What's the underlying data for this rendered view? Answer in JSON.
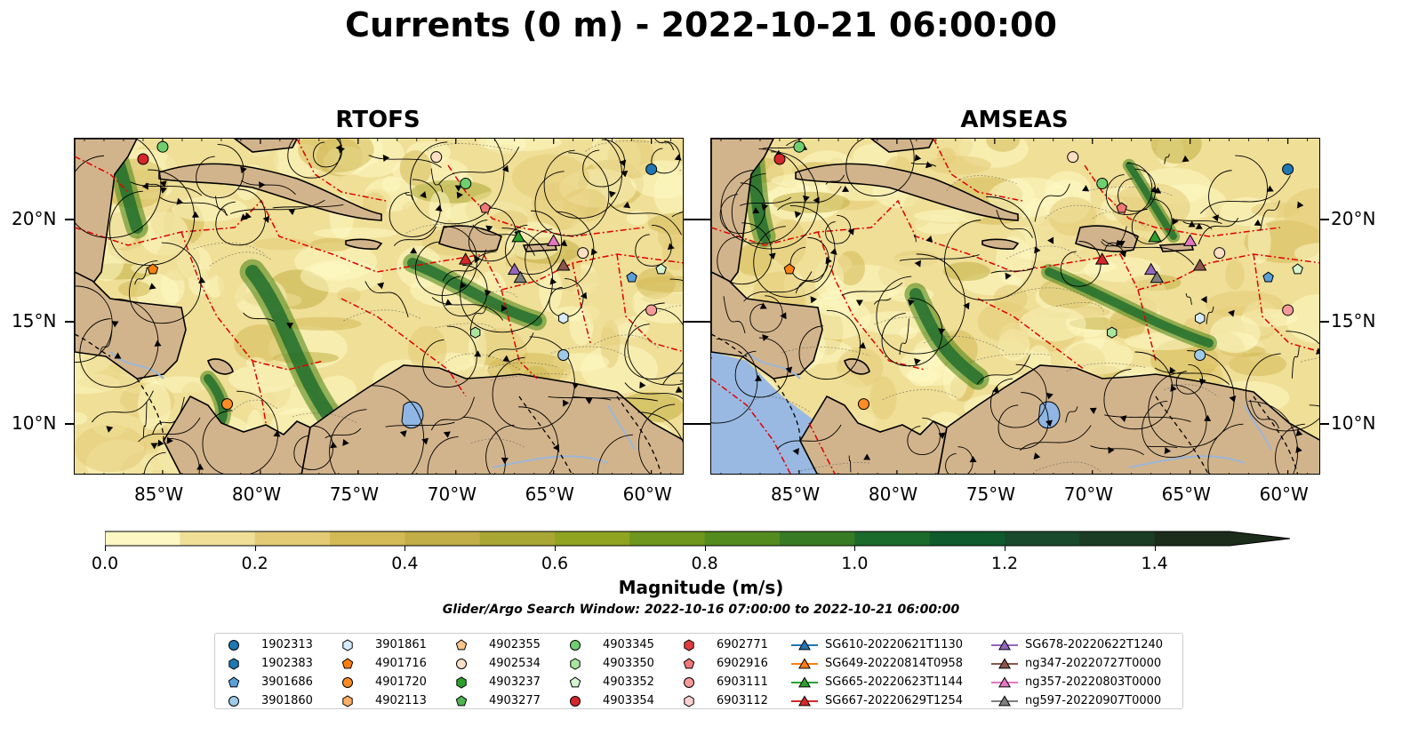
{
  "title": "Currents (0 m) - 2022-10-21 06:00:00",
  "panels": [
    {
      "title": "RTOFS"
    },
    {
      "title": "AMSEAS"
    }
  ],
  "axes": {
    "x_ticks": [
      "85°W",
      "80°W",
      "75°W",
      "70°W",
      "65°W",
      "60°W"
    ],
    "y_ticks": [
      "20°N",
      "15°N",
      "10°N"
    ],
    "lon_range": [
      -89.5,
      -58.3
    ],
    "lat_range": [
      7.5,
      24.0
    ]
  },
  "colorbar": {
    "label": "Magnitude (m/s)",
    "ticks": [
      "0.0",
      "0.2",
      "0.4",
      "0.6",
      "0.8",
      "1.0",
      "1.2",
      "1.4"
    ],
    "range": [
      0.0,
      1.5
    ],
    "extend": "max",
    "colors": [
      "#fdf7c3",
      "#efdf97",
      "#e3cb76",
      "#d4ba57",
      "#c2ae46",
      "#a9a734",
      "#90a422",
      "#6f961d",
      "#548b1e",
      "#377c24",
      "#1b6b2c",
      "#0f5b2d",
      "#184a2b",
      "#1b3d25",
      "#1c2d1b"
    ]
  },
  "search_window": "Glider/Argo Search Window: 2022-10-16 07:00:00 to 2022-10-21 06:00:00",
  "colors": {
    "land": "#d2b48c",
    "water_outside": "#99b9e2",
    "contour": "#e10000",
    "streamline": "#000000"
  },
  "legend": [
    {
      "label": "1902313",
      "marker": "circle",
      "color": "#1f77b4"
    },
    {
      "label": "1902383",
      "marker": "hexagon",
      "color": "#1f77b4"
    },
    {
      "label": "3901686",
      "marker": "pentagon",
      "color": "#5aa0d8"
    },
    {
      "label": "3901860",
      "marker": "circle",
      "color": "#9ecae9"
    },
    {
      "label": "3901861",
      "marker": "hexagon",
      "color": "#d6ecfa"
    },
    {
      "label": "4901716",
      "marker": "pentagon",
      "color": "#ff7f0e"
    },
    {
      "label": "4901720",
      "marker": "circle",
      "color": "#ff8b24"
    },
    {
      "label": "4902113",
      "marker": "hexagon",
      "color": "#ffae66"
    },
    {
      "label": "4902355",
      "marker": "pentagon",
      "color": "#ffc58a"
    },
    {
      "label": "4902534",
      "marker": "circle",
      "color": "#ffe0c4"
    },
    {
      "label": "4903237",
      "marker": "hexagon",
      "color": "#2ca02c"
    },
    {
      "label": "4903277",
      "marker": "pentagon",
      "color": "#50b450"
    },
    {
      "label": "4903345",
      "marker": "circle",
      "color": "#6fcf6f"
    },
    {
      "label": "4903350",
      "marker": "hexagon",
      "color": "#a8e6a0"
    },
    {
      "label": "4903352",
      "marker": "pentagon",
      "color": "#d4f5d0"
    },
    {
      "label": "4903354",
      "marker": "circle",
      "color": "#d62728"
    },
    {
      "label": "6902771",
      "marker": "hexagon",
      "color": "#e03c3c"
    },
    {
      "label": "6902916",
      "marker": "pentagon",
      "color": "#f07878"
    },
    {
      "label": "6903111",
      "marker": "circle",
      "color": "#f59a9a"
    },
    {
      "label": "6903112",
      "marker": "hexagon",
      "color": "#fcd0d0"
    },
    {
      "label": "SG610-20220621T1130",
      "marker": "triangle",
      "color": "#1f77b4"
    },
    {
      "label": "SG649-20220814T0958",
      "marker": "triangle",
      "color": "#ff7f0e"
    },
    {
      "label": "SG665-20220623T1144",
      "marker": "triangle",
      "color": "#2ca02c"
    },
    {
      "label": "SG667-20220629T1254",
      "marker": "triangle",
      "color": "#d62728"
    },
    {
      "label": "SG678-20220622T1240",
      "marker": "triangle",
      "color": "#9467bd"
    },
    {
      "label": "ng347-20220727T0000",
      "marker": "triangle",
      "color": "#8c564b"
    },
    {
      "label": "ng357-20220803T0000",
      "marker": "triangle",
      "color": "#e377c2"
    },
    {
      "label": "ng597-20220907T0000",
      "marker": "triangle",
      "color": "#7f7f7f"
    }
  ],
  "observations": [
    {
      "id": "1902313",
      "lon": -60.0,
      "lat": 22.5
    },
    {
      "id": "4903345",
      "lon": -85.0,
      "lat": 23.6
    },
    {
      "id": "4903354",
      "lon": -86.0,
      "lat": 23.0
    },
    {
      "id": "4902534",
      "lon": -71.0,
      "lat": 23.1
    },
    {
      "id": "4903345",
      "lon": -69.5,
      "lat": 21.8
    },
    {
      "id": "6902916",
      "lon": -68.5,
      "lat": 20.6
    },
    {
      "id": "4901716",
      "lon": -85.5,
      "lat": 17.6
    },
    {
      "id": "4902534",
      "lon": -63.5,
      "lat": 18.4
    },
    {
      "id": "3901686",
      "lon": -61.0,
      "lat": 17.2
    },
    {
      "id": "4903352",
      "lon": -59.5,
      "lat": 17.6
    },
    {
      "id": "3901861",
      "lon": -64.5,
      "lat": 15.2
    },
    {
      "id": "4903350",
      "lon": -69.0,
      "lat": 14.5
    },
    {
      "id": "3901860",
      "lon": -64.5,
      "lat": 13.4
    },
    {
      "id": "6903111",
      "lon": -60.0,
      "lat": 15.6
    },
    {
      "id": "4901720",
      "lon": -81.7,
      "lat": 11.0
    }
  ],
  "gliders": [
    {
      "id": "SG665-20220623T1144",
      "lon": -66.8,
      "lat": 19.2
    },
    {
      "id": "ng357-20220803T0000",
      "lon": -65.0,
      "lat": 19.0
    },
    {
      "id": "SG667-20220629T1254",
      "lon": -69.5,
      "lat": 18.1
    },
    {
      "id": "SG678-20220622T1240",
      "lon": -67.0,
      "lat": 17.6
    },
    {
      "id": "ng597-20220907T0000",
      "lon": -66.7,
      "lat": 17.2
    },
    {
      "id": "ng347-20220727T0000",
      "lon": -64.5,
      "lat": 17.8
    }
  ]
}
